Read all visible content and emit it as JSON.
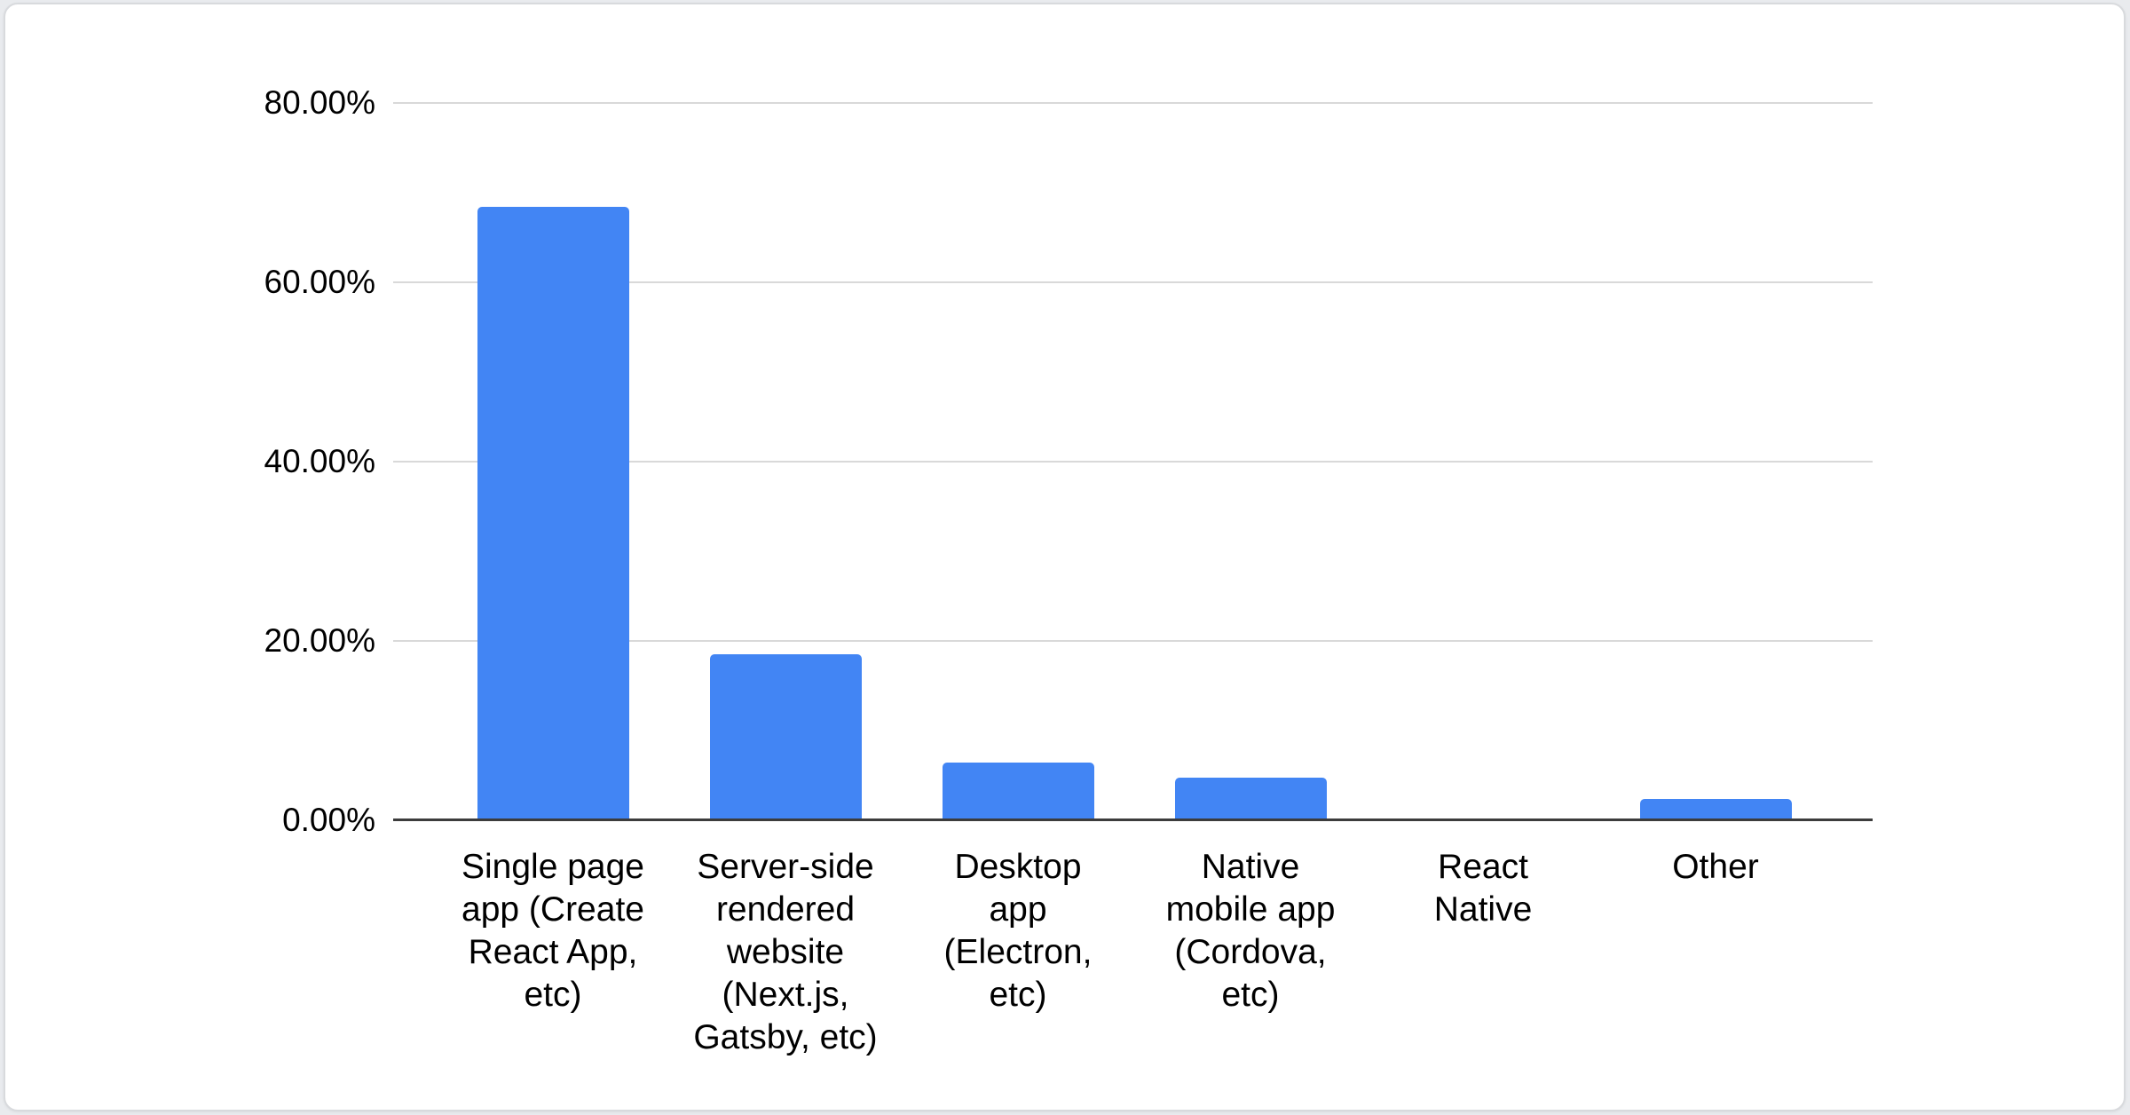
{
  "chart_data": {
    "type": "bar",
    "title": "",
    "xlabel": "",
    "ylabel": "",
    "unit": "%",
    "categories": [
      "Single page app (Create React App, etc)",
      "Server-side rendered website (Next.js, Gatsby, etc)",
      "Desktop app (Electron, etc)",
      "Native mobile app (Cordova, etc)",
      "React Native",
      "Other"
    ],
    "category_lines": [
      [
        "Single page",
        "app (Create",
        "React App,",
        "etc)"
      ],
      [
        "Server-side",
        "rendered",
        "website",
        "(Next.js,",
        "Gatsby, etc)"
      ],
      [
        "Desktop",
        "app",
        "(Electron,",
        "etc)"
      ],
      [
        "Native",
        "mobile app",
        "(Cordova,",
        "etc)"
      ],
      [
        "React",
        "Native"
      ],
      [
        "Other"
      ]
    ],
    "values": [
      68.4,
      18.5,
      6.4,
      4.8,
      0.0,
      2.4
    ],
    "ylim": [
      0,
      80
    ],
    "ytick_values": [
      80,
      60,
      40,
      20,
      0
    ],
    "ytick_labels": [
      "80.00%",
      "60.00%",
      "40.00%",
      "20.00%",
      "0.00%"
    ],
    "grid": true,
    "legend_position": "none",
    "colors": {
      "bar": "#4285f4",
      "gridline": "#d9d9d9",
      "axis_line": "#3c3c3c",
      "label_text": "#000000",
      "card_background": "#ffffff",
      "card_border": "#d8dadd"
    }
  }
}
